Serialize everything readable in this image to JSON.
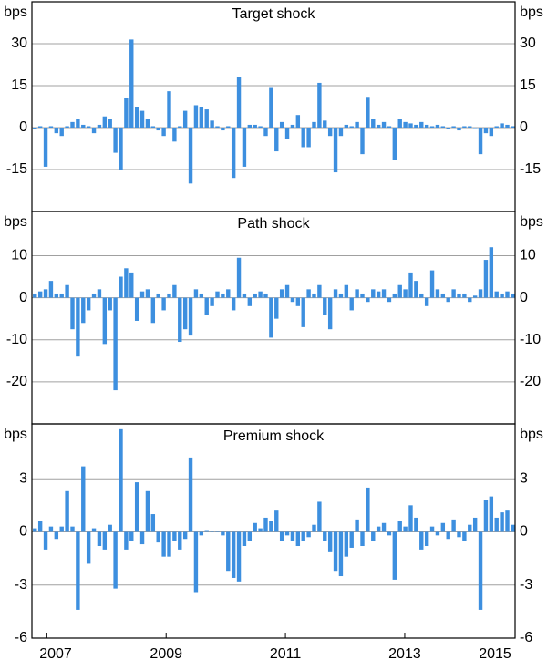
{
  "chart_data": [
    {
      "type": "bar",
      "title": "Target shock",
      "ylabel": "bps",
      "color": "#3d8fdf",
      "grid": true,
      "xlim": [
        2006.75,
        2014.85
      ],
      "ylim": [
        -30,
        45
      ],
      "yticks": [
        -15,
        0,
        15,
        30
      ],
      "x": [
        2006.8,
        2006.89,
        2006.98,
        2007.07,
        2007.16,
        2007.25,
        2007.34,
        2007.43,
        2007.52,
        2007.61,
        2007.7,
        2007.79,
        2007.88,
        2007.97,
        2008.06,
        2008.15,
        2008.24,
        2008.33,
        2008.42,
        2008.51,
        2008.6,
        2008.69,
        2008.78,
        2008.87,
        2008.96,
        2009.05,
        2009.14,
        2009.23,
        2009.32,
        2009.41,
        2009.5,
        2009.59,
        2009.68,
        2009.77,
        2009.86,
        2009.95,
        2010.04,
        2010.13,
        2010.22,
        2010.31,
        2010.4,
        2010.49,
        2010.58,
        2010.67,
        2010.76,
        2010.85,
        2010.94,
        2011.03,
        2011.12,
        2011.21,
        2011.3,
        2011.39,
        2011.48,
        2011.57,
        2011.66,
        2011.75,
        2011.84,
        2011.93,
        2012.02,
        2012.11,
        2012.2,
        2012.29,
        2012.38,
        2012.47,
        2012.56,
        2012.65,
        2012.74,
        2012.83,
        2012.92,
        2013.01,
        2013.1,
        2013.19,
        2013.28,
        2013.37,
        2013.46,
        2013.55,
        2013.64,
        2013.73,
        2013.82,
        2013.91,
        2014.0,
        2014.09,
        2014.18,
        2014.27,
        2014.36,
        2014.45,
        2014.54,
        2014.63,
        2014.72,
        2014.81
      ],
      "values": [
        -0.5,
        0.5,
        -14,
        0.5,
        -2,
        -3,
        0.5,
        2,
        3,
        1,
        0.5,
        -2,
        1,
        4,
        3,
        -9,
        -15,
        10.5,
        31.5,
        7.5,
        6,
        3,
        0.5,
        -1,
        -3,
        13,
        -5,
        0.5,
        6,
        -20,
        8,
        7.5,
        6.5,
        2.5,
        0.5,
        -1,
        0.5,
        -18,
        18,
        -14,
        1,
        1,
        0.5,
        -3,
        14.5,
        -8.5,
        2,
        -4,
        1,
        4.5,
        -7,
        -7,
        2,
        16,
        2.5,
        -3,
        -16,
        -3,
        1,
        0.5,
        2,
        -9.5,
        11,
        3,
        1,
        2,
        0.5,
        -11.5,
        3,
        2,
        1.5,
        1,
        2,
        1,
        0.5,
        1,
        0.5,
        -0.5,
        0.5,
        -1,
        0.5,
        0.5,
        0,
        -9.5,
        -2,
        -3,
        0.5,
        1.5,
        1,
        0.5
      ]
    },
    {
      "type": "bar",
      "title": "Path shock",
      "ylabel": "bps",
      "color": "#3d8fdf",
      "grid": true,
      "xlim": [
        2006.75,
        2014.85
      ],
      "ylim": [
        -30,
        20.5
      ],
      "yticks": [
        -20,
        -10,
        0,
        10
      ],
      "x": [
        2006.8,
        2006.89,
        2006.98,
        2007.07,
        2007.16,
        2007.25,
        2007.34,
        2007.43,
        2007.52,
        2007.61,
        2007.7,
        2007.79,
        2007.88,
        2007.97,
        2008.06,
        2008.15,
        2008.24,
        2008.33,
        2008.42,
        2008.51,
        2008.6,
        2008.69,
        2008.78,
        2008.87,
        2008.96,
        2009.05,
        2009.14,
        2009.23,
        2009.32,
        2009.41,
        2009.5,
        2009.59,
        2009.68,
        2009.77,
        2009.86,
        2009.95,
        2010.04,
        2010.13,
        2010.22,
        2010.31,
        2010.4,
        2010.49,
        2010.58,
        2010.67,
        2010.76,
        2010.85,
        2010.94,
        2011.03,
        2011.12,
        2011.21,
        2011.3,
        2011.39,
        2011.48,
        2011.57,
        2011.66,
        2011.75,
        2011.84,
        2011.93,
        2012.02,
        2012.11,
        2012.2,
        2012.29,
        2012.38,
        2012.47,
        2012.56,
        2012.65,
        2012.74,
        2012.83,
        2012.92,
        2013.01,
        2013.1,
        2013.19,
        2013.28,
        2013.37,
        2013.46,
        2013.55,
        2013.64,
        2013.73,
        2013.82,
        2013.91,
        2014.0,
        2014.09,
        2014.18,
        2014.27,
        2014.36,
        2014.45,
        2014.54,
        2014.63,
        2014.72,
        2014.81
      ],
      "values": [
        1,
        1.5,
        2,
        4,
        1,
        1,
        3,
        -7.5,
        -14,
        -6,
        -3,
        1,
        2,
        -11,
        -3,
        -22,
        5,
        7,
        6,
        -5.5,
        1.5,
        2,
        -6,
        1,
        -3,
        1,
        3,
        -10.5,
        -7.5,
        -9,
        2,
        1,
        -4,
        -2,
        1.5,
        1,
        2,
        -3,
        9.5,
        1,
        -2,
        1,
        1.5,
        1,
        -9.5,
        -5,
        2,
        3,
        -1,
        -2,
        -7,
        2,
        1,
        3,
        -4,
        -7.5,
        2,
        1,
        3,
        -3,
        2,
        1,
        -1,
        2,
        1.5,
        2,
        -1,
        1,
        3,
        2,
        6,
        4,
        1,
        -2,
        6.5,
        2,
        1,
        -1,
        2,
        1,
        1,
        -1,
        0.5,
        2,
        9,
        12,
        1.5,
        1,
        1.5,
        1
      ]
    },
    {
      "type": "bar",
      "title": "Premium shock",
      "ylabel": "bps",
      "color": "#3d8fdf",
      "grid": true,
      "xlim": [
        2006.75,
        2014.85
      ],
      "ylim": [
        -6,
        6.1
      ],
      "yticks": [
        -6,
        -3,
        0,
        3
      ],
      "xticks": [
        2007,
        2009,
        2011,
        2013,
        2015
      ],
      "x": [
        2006.8,
        2006.89,
        2006.98,
        2007.07,
        2007.16,
        2007.25,
        2007.34,
        2007.43,
        2007.52,
        2007.61,
        2007.7,
        2007.79,
        2007.88,
        2007.97,
        2008.06,
        2008.15,
        2008.24,
        2008.33,
        2008.42,
        2008.51,
        2008.6,
        2008.69,
        2008.78,
        2008.87,
        2008.96,
        2009.05,
        2009.14,
        2009.23,
        2009.32,
        2009.41,
        2009.5,
        2009.59,
        2009.68,
        2009.77,
        2009.86,
        2009.95,
        2010.04,
        2010.13,
        2010.22,
        2010.31,
        2010.4,
        2010.49,
        2010.58,
        2010.67,
        2010.76,
        2010.85,
        2010.94,
        2011.03,
        2011.12,
        2011.21,
        2011.3,
        2011.39,
        2011.48,
        2011.57,
        2011.66,
        2011.75,
        2011.84,
        2011.93,
        2012.02,
        2012.11,
        2012.2,
        2012.29,
        2012.38,
        2012.47,
        2012.56,
        2012.65,
        2012.74,
        2012.83,
        2012.92,
        2013.01,
        2013.1,
        2013.19,
        2013.28,
        2013.37,
        2013.46,
        2013.55,
        2013.64,
        2013.73,
        2013.82,
        2013.91,
        2014.0,
        2014.09,
        2014.18,
        2014.27,
        2014.36,
        2014.45,
        2014.54,
        2014.63,
        2014.72,
        2014.81
      ],
      "values": [
        0.2,
        0.6,
        -1,
        0.3,
        -0.4,
        0.3,
        2.3,
        0.3,
        -4.4,
        3.7,
        -1.8,
        0.2,
        -0.8,
        -1,
        0.4,
        -3.2,
        5.8,
        -1,
        -0.5,
        2.8,
        -0.7,
        2.3,
        1,
        -0.6,
        -1.4,
        -1.4,
        -0.5,
        -1,
        -0.4,
        4.2,
        -3.4,
        -0.2,
        0.1,
        0.05,
        0.05,
        -0.2,
        -2.2,
        -2.6,
        -2.8,
        -0.8,
        -0.5,
        0.5,
        0.2,
        0.8,
        0.6,
        1.2,
        -0.5,
        -0.2,
        -0.5,
        -0.8,
        -0.5,
        -0.3,
        0.4,
        1.7,
        -0.5,
        -1.1,
        -2.2,
        -2.5,
        -1.4,
        -0.9,
        0.7,
        -0.8,
        2.5,
        -0.5,
        0.3,
        0.5,
        -0.2,
        -2.7,
        0.6,
        0.3,
        1.5,
        0.8,
        -1,
        -0.8,
        0.3,
        -0.2,
        0.5,
        -0.4,
        0.7,
        -0.3,
        -0.5,
        0.4,
        0.8,
        -4.4,
        1.8,
        2,
        0.8,
        1.1,
        1.2,
        0.4
      ]
    }
  ]
}
